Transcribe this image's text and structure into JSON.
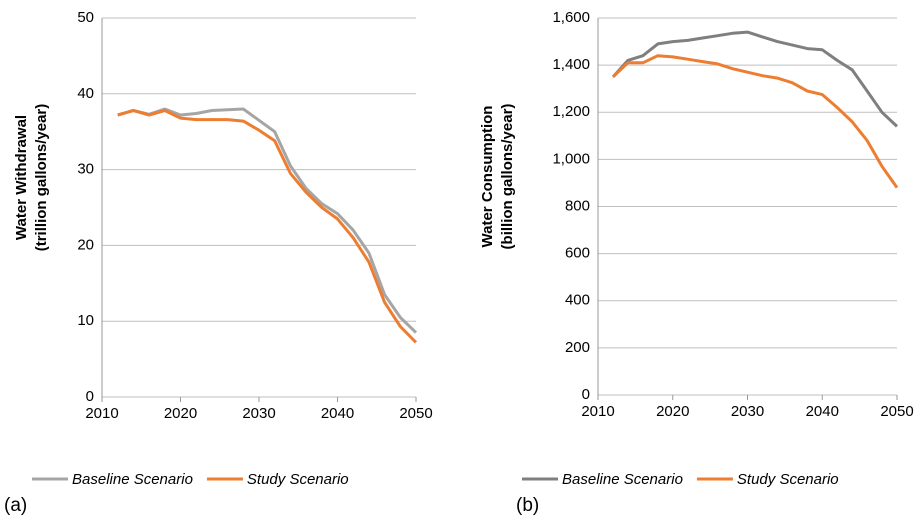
{
  "chart_data": [
    {
      "type": "line",
      "panel_label": "(a)",
      "y_label": [
        "Water Withdrawal",
        "(trillion gallons/year)"
      ],
      "x": [
        2012,
        2014,
        2016,
        2018,
        2020,
        2022,
        2024,
        2026,
        2028,
        2030,
        2032,
        2034,
        2036,
        2038,
        2040,
        2042,
        2044,
        2046,
        2048,
        2050
      ],
      "xlim": [
        2010,
        2050
      ],
      "xticks": [
        2010,
        2020,
        2030,
        2040,
        2050
      ],
      "ylim": [
        0,
        50
      ],
      "yticks": [
        0,
        10,
        20,
        30,
        40,
        50
      ],
      "grid": true,
      "series": [
        {
          "name": "Baseline Scenario",
          "color": "#a5a5a5",
          "values": [
            37.2,
            37.8,
            37.3,
            38.0,
            37.2,
            37.4,
            37.8,
            37.9,
            38.0,
            36.5,
            35.0,
            30.5,
            27.5,
            25.5,
            24.2,
            22.0,
            19.0,
            13.5,
            10.5,
            8.5
          ]
        },
        {
          "name": "Study Scenario",
          "color": "#ed7d31",
          "values": [
            37.2,
            37.8,
            37.2,
            37.8,
            36.8,
            36.6,
            36.6,
            36.6,
            36.4,
            35.2,
            33.8,
            29.5,
            27.0,
            25.0,
            23.5,
            21.0,
            17.8,
            12.5,
            9.3,
            7.2
          ]
        }
      ]
    },
    {
      "type": "line",
      "panel_label": "(b)",
      "y_label": [
        "Water Consumption",
        "(billion gallons/year)"
      ],
      "x": [
        2012,
        2014,
        2016,
        2018,
        2020,
        2022,
        2024,
        2026,
        2028,
        2030,
        2032,
        2034,
        2036,
        2038,
        2040,
        2042,
        2044,
        2046,
        2048,
        2050
      ],
      "xlim": [
        2010,
        2050
      ],
      "xticks": [
        2010,
        2020,
        2030,
        2040,
        2050
      ],
      "ylim": [
        0,
        1600
      ],
      "yticks": [
        0,
        200,
        400,
        600,
        800,
        {
          "value": 1000,
          "label": "1,000"
        },
        {
          "value": 1200,
          "label": "1,200"
        },
        {
          "value": 1400,
          "label": "1,400"
        },
        {
          "value": 1600,
          "label": "1,600"
        }
      ],
      "grid": true,
      "series": [
        {
          "name": "Baseline Scenario",
          "color": "#7f7f7f",
          "values": [
            1350,
            1420,
            1440,
            1490,
            1500,
            1505,
            1515,
            1525,
            1535,
            1540,
            1520,
            1500,
            1485,
            1470,
            1465,
            1420,
            1380,
            1290,
            1200,
            1140
          ]
        },
        {
          "name": "Study Scenario",
          "color": "#ed7d31",
          "values": [
            1350,
            1410,
            1410,
            1440,
            1435,
            1425,
            1415,
            1405,
            1385,
            1370,
            1355,
            1345,
            1325,
            1290,
            1275,
            1220,
            1160,
            1080,
            970,
            880
          ]
        }
      ]
    }
  ]
}
